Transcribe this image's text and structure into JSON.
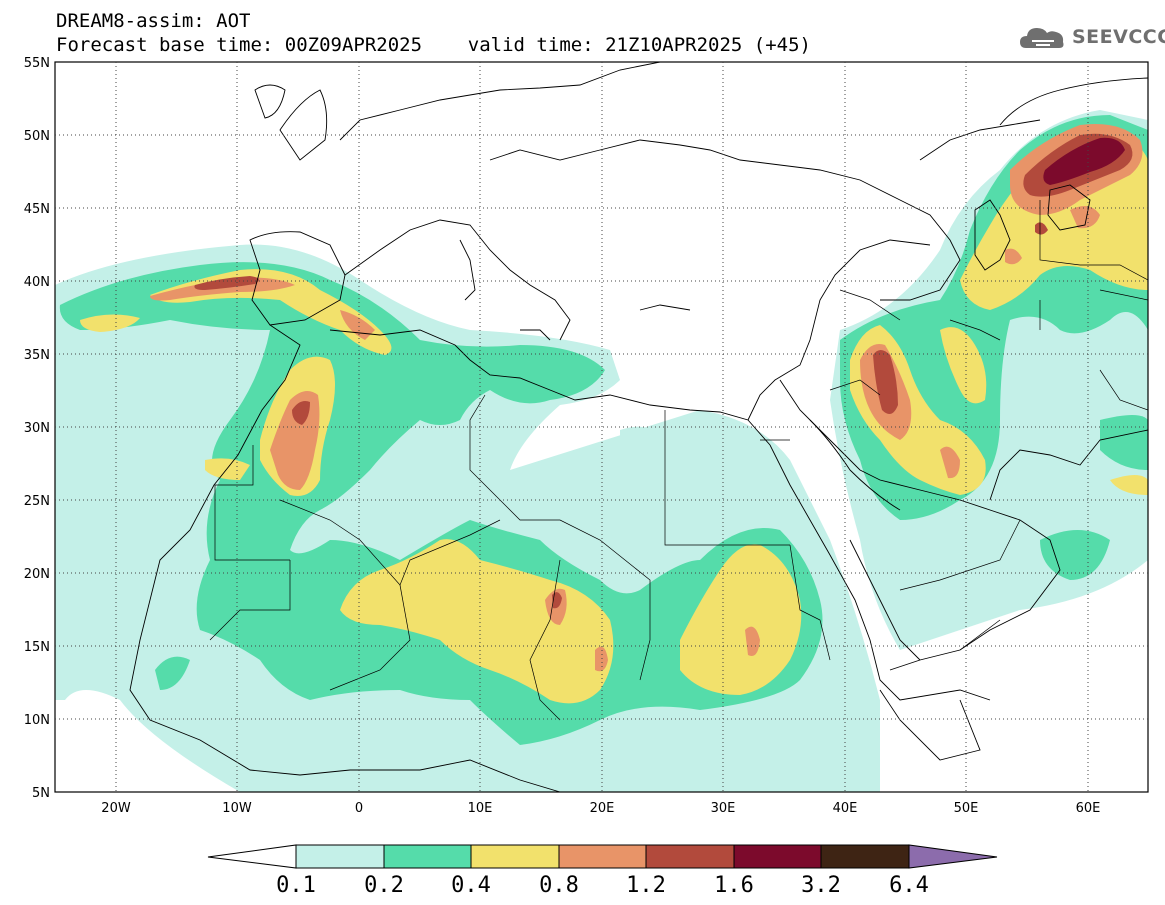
{
  "header": {
    "line1": "DREAM8-assim: AOT",
    "line2": "Forecast base time: 00Z09APR2025    valid time: 21Z10APR2025 (+45)"
  },
  "logo": {
    "text": "SEEVCCC",
    "icon": "cloud-logo-icon"
  },
  "map": {
    "lon_range": [
      -25,
      65
    ],
    "lat_range": [
      5,
      55
    ],
    "lat_ticks": [
      "5N",
      "10N",
      "15N",
      "20N",
      "25N",
      "30N",
      "35N",
      "40N",
      "45N",
      "50N",
      "55N"
    ],
    "lon_ticks": [
      "20W",
      "10W",
      "0",
      "10E",
      "20E",
      "30E",
      "40E",
      "50E",
      "60E"
    ],
    "grid": "dotted"
  },
  "colorbar": {
    "labels": [
      "0.1",
      "0.2",
      "0.4",
      "0.8",
      "1.2",
      "1.6",
      "3.2",
      "6.4"
    ],
    "colors": [
      "#ffffff",
      "#c4f0e8",
      "#55dcaa",
      "#f2e16c",
      "#e89468",
      "#b24a3c",
      "#7c0a2c",
      "#3e2414",
      "#8c6cac"
    ]
  }
}
